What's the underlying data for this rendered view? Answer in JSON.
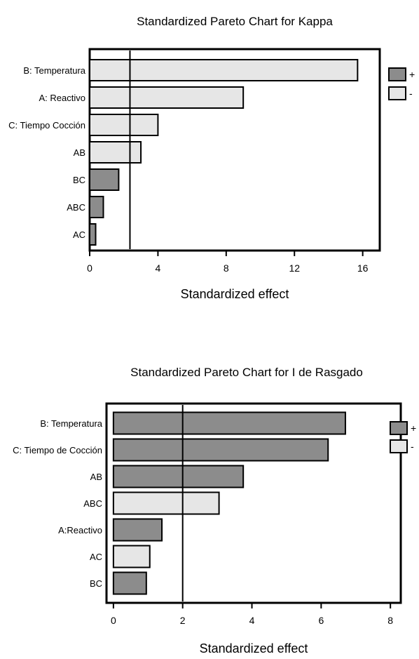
{
  "colors": {
    "positive": "#8c8c8c",
    "negative": "#e6e6e6",
    "outline": "#000000"
  },
  "chart_data": [
    {
      "type": "bar",
      "orientation": "horizontal",
      "title": "Standardized Pareto Chart for Kappa",
      "xlabel": "Standardized effect",
      "ylabel": "",
      "xlim": [
        0,
        17
      ],
      "xticks": [
        0,
        4,
        8,
        12,
        16
      ],
      "xtick_labels": [
        "0",
        "4",
        "8",
        "12",
        "16"
      ],
      "reference_line": 2.36,
      "legend": {
        "position": "right",
        "items": [
          {
            "label": "+",
            "sign": "positive"
          },
          {
            "label": "-",
            "sign": "negative"
          }
        ]
      },
      "categories": [
        "B: Temperatura",
        "A: Reactivo",
        "C: Tiempo Cocción",
        "AB",
        "BC",
        "ABC",
        "AC"
      ],
      "values": [
        15.7,
        9.0,
        4.0,
        3.0,
        1.7,
        0.8,
        0.35
      ],
      "signs": [
        "negative",
        "negative",
        "negative",
        "negative",
        "positive",
        "positive",
        "positive"
      ]
    },
    {
      "type": "bar",
      "orientation": "horizontal",
      "title": "Standardized Pareto Chart for I de Rasgado",
      "xlabel": "Standardized effect",
      "ylabel": "",
      "xlim": [
        -0.2,
        8.3
      ],
      "xticks": [
        0,
        2,
        4,
        6,
        8
      ],
      "xtick_labels": [
        "0",
        "2",
        "4",
        "6",
        "8"
      ],
      "reference_line": 2.0,
      "legend": {
        "position": "right",
        "items": [
          {
            "label": "+",
            "sign": "positive"
          },
          {
            "label": "-",
            "sign": "negative"
          }
        ]
      },
      "categories": [
        "B: Temperatura",
        "C: Tiempo de Cocción",
        "AB",
        "ABC",
        "A:Reactivo",
        "AC",
        "BC"
      ],
      "values": [
        6.7,
        6.2,
        3.75,
        3.05,
        1.4,
        1.05,
        0.95
      ],
      "signs": [
        "positive",
        "positive",
        "positive",
        "negative",
        "positive",
        "negative",
        "positive"
      ]
    }
  ]
}
